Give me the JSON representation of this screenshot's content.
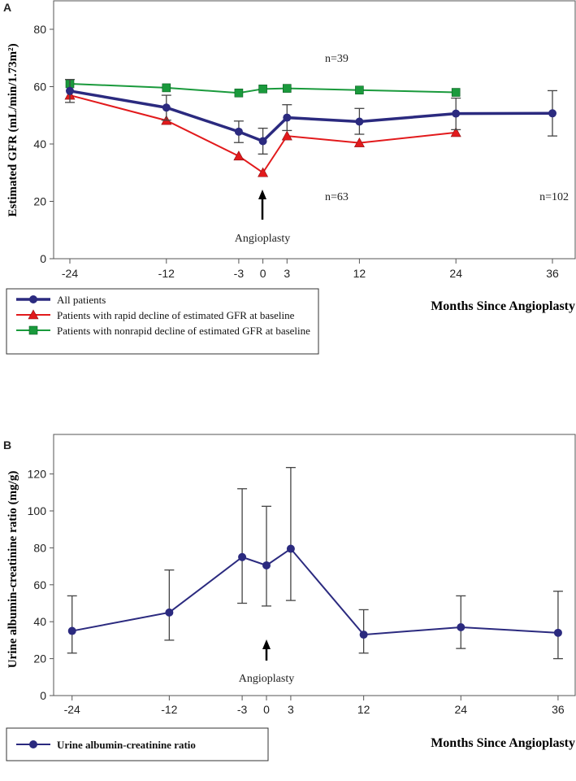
{
  "chart_data": [
    {
      "panel_label": "A",
      "type": "line",
      "ylabel": "Estimated GFR (mL/min/1.73m²)",
      "xlabel": "Months Since Angioplasty",
      "ylim": [
        0,
        85
      ],
      "yticks": [
        0,
        20,
        40,
        60,
        80
      ],
      "xticks": [
        -24,
        -12,
        -3,
        0,
        3,
        12,
        24,
        36
      ],
      "grid": false,
      "annotation": "Angioplasty",
      "annotation_x": 0,
      "legend_position": "below",
      "series": [
        {
          "name": "All patients",
          "color": "#2b2a7f",
          "marker": "circle",
          "x": [
            -24,
            -12,
            -3,
            0,
            3,
            12,
            24,
            36
          ],
          "y": [
            58.5,
            52.7,
            44.3,
            41.0,
            49.2,
            47.8,
            50.6,
            50.7
          ],
          "err_low": [
            54.5,
            48.3,
            40.5,
            36.5,
            44.7,
            43.4,
            45.0,
            42.8
          ],
          "err_high": [
            62.5,
            57.0,
            48.0,
            45.5,
            53.7,
            52.4,
            56.0,
            58.6
          ],
          "n_label": "n=102"
        },
        {
          "name": "Patients with rapid decline of estimated GFR at baseline",
          "color": "#e21a1c",
          "marker": "triangle",
          "x": [
            -24,
            -12,
            -3,
            0,
            3,
            12,
            24
          ],
          "y": [
            57.0,
            48.2,
            35.8,
            30.0,
            42.8,
            40.4,
            44.0
          ],
          "n_label": "n=63"
        },
        {
          "name": "Patients with nonrapid decline of estimated GFR at baseline",
          "color": "#1a9a3c",
          "marker": "square",
          "x": [
            -24,
            -12,
            -3,
            0,
            3,
            12,
            24
          ],
          "y": [
            61.0,
            59.6,
            57.8,
            59.2,
            59.4,
            58.8,
            58.0
          ],
          "n_label": "n=39"
        }
      ]
    },
    {
      "panel_label": "B",
      "type": "line",
      "ylabel": "Urine albumin-creatinine ratio (mg/g)",
      "xlabel": "Months Since Angioplasty",
      "ylim": [
        0,
        130
      ],
      "yticks": [
        0,
        20,
        40,
        60,
        80,
        100,
        120
      ],
      "xticks": [
        -24,
        -12,
        -3,
        0,
        3,
        12,
        24,
        36
      ],
      "grid": false,
      "annotation": "Angioplasty",
      "annotation_x": 0,
      "legend_position": "below",
      "series": [
        {
          "name": "Urine albumin-creatinine ratio",
          "color": "#2b2a7f",
          "marker": "circle",
          "x": [
            -24,
            -12,
            -3,
            0,
            3,
            12,
            24,
            36
          ],
          "y": [
            35,
            45,
            75,
            70.5,
            79.5,
            33,
            37,
            34
          ],
          "err_low": [
            23,
            30,
            50,
            48.5,
            51.5,
            23,
            25.5,
            20
          ],
          "err_high": [
            54,
            68,
            112,
            102.5,
            123.5,
            46.5,
            54,
            56.5
          ]
        }
      ]
    }
  ]
}
